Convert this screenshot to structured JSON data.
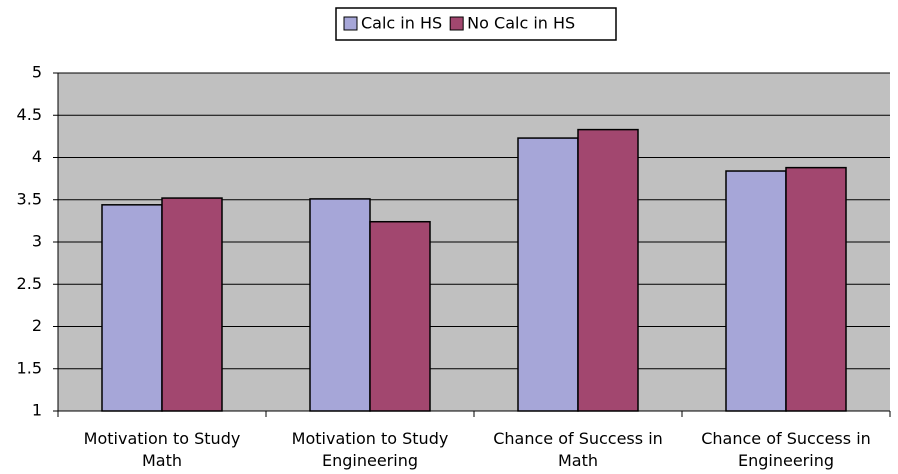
{
  "chart_data": {
    "type": "bar",
    "categories": [
      "Motivation to Study Math",
      "Motivation to Study Engineering",
      "Chance of Success in Math",
      "Chance of Success in Engineering"
    ],
    "series": [
      {
        "name": "Calc in HS",
        "color": "#a6a6d8",
        "values": [
          3.44,
          3.51,
          4.23,
          3.84
        ]
      },
      {
        "name": "No Calc in HS",
        "color": "#a2476f",
        "values": [
          3.52,
          3.24,
          4.33,
          3.88
        ]
      }
    ],
    "ylim": [
      1,
      5
    ],
    "yticks": [
      1,
      1.5,
      2,
      2.5,
      3,
      3.5,
      4,
      4.5,
      5
    ],
    "grid": true,
    "legend": "top"
  }
}
